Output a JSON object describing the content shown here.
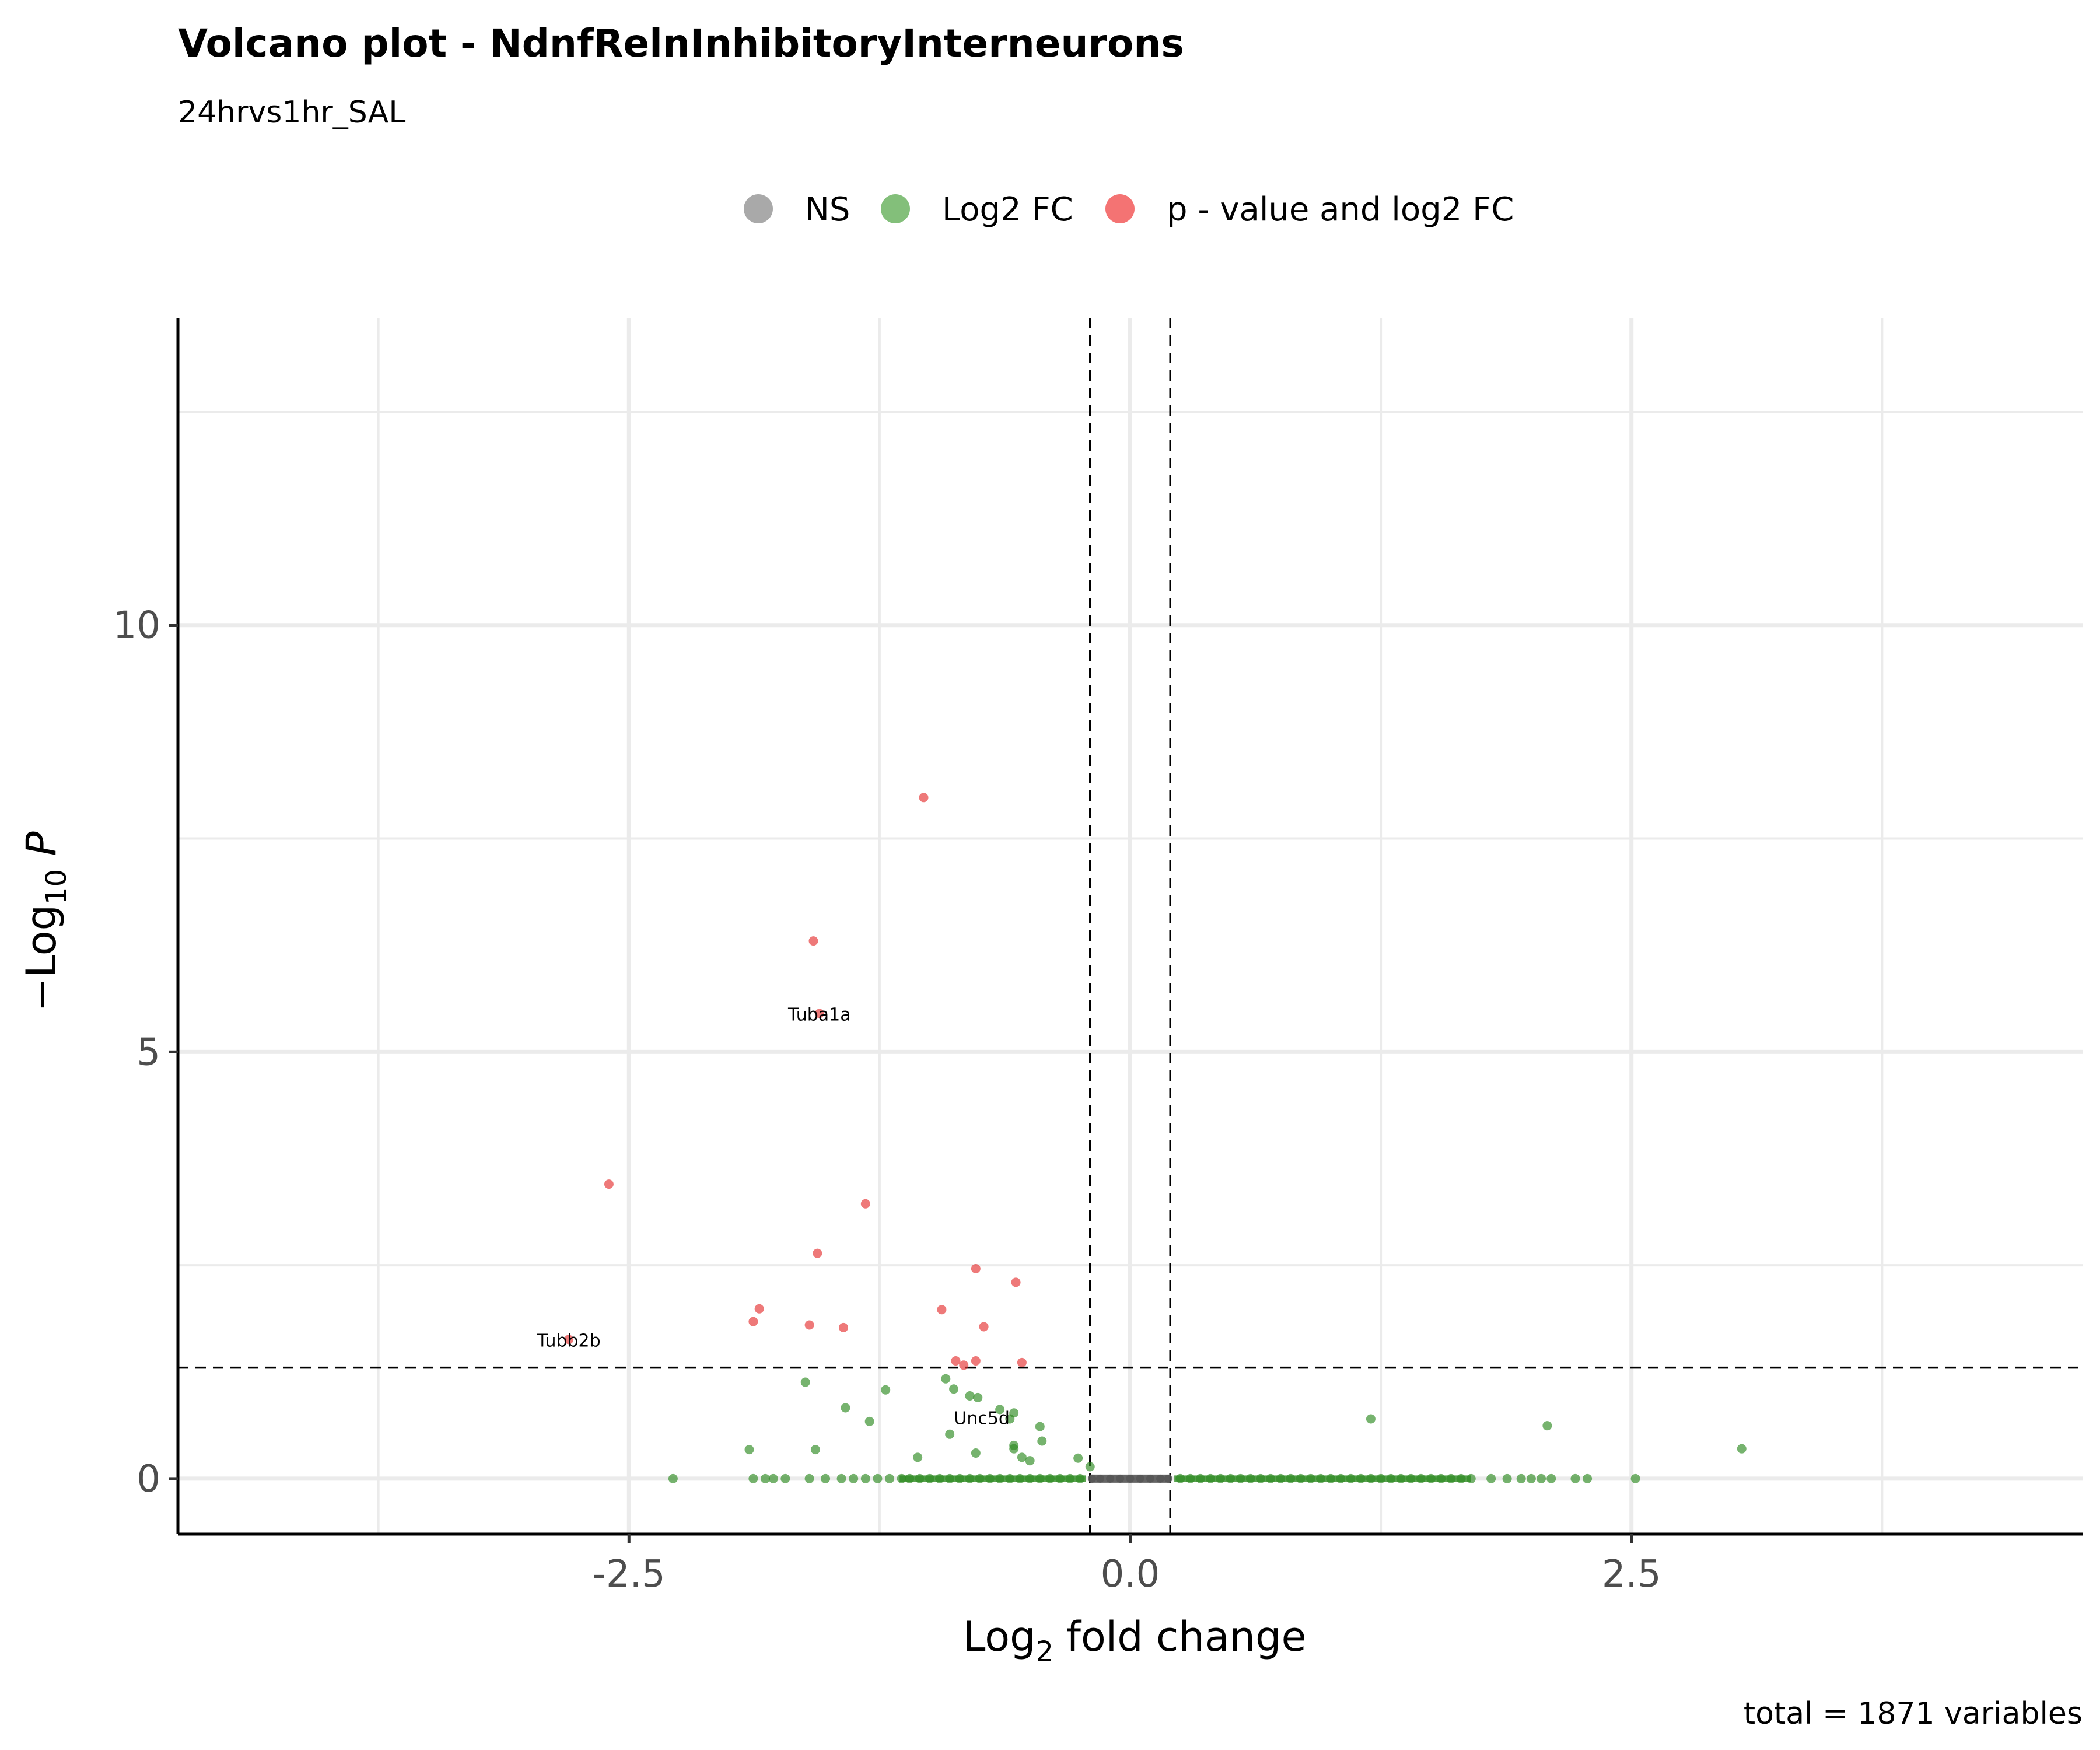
{
  "chart_data": {
    "type": "scatter",
    "title": "Volcano plot - NdnfRelnInhibitoryInterneurons",
    "subtitle": "24hrvs1hr_SAL",
    "caption": "total = 1871 variables",
    "xlabel": "Log2 fold change",
    "ylabel": "-Log10 P",
    "xlim": [
      -4.75,
      4.75
    ],
    "ylim": [
      -0.65,
      13.6
    ],
    "x_ticks": [
      -2.5,
      0.0,
      2.5
    ],
    "x_tick_labels": [
      "-2.5",
      "0.0",
      "2.5"
    ],
    "y_ticks": [
      0,
      5,
      10
    ],
    "y_tick_labels": [
      "0",
      "5",
      "10"
    ],
    "grid": true,
    "legend_position": "top",
    "thresholds": {
      "log2fc": [
        -0.2,
        0.2
      ],
      "neg_log10_p": 1.3
    },
    "legend": [
      {
        "key": "ns",
        "label": "NS",
        "color": "#8c8c8c"
      },
      {
        "key": "fc",
        "label": "Log2 FC",
        "color": "#5aaa4e"
      },
      {
        "key": "both",
        "label": "p - value and log2 FC",
        "color": "#f04444"
      }
    ],
    "series": [
      {
        "name": "p - value and log2 FC",
        "color": "#e63232",
        "points": [
          [
            -1.03,
            7.98
          ],
          [
            -1.58,
            6.3
          ],
          [
            -1.55,
            5.45
          ],
          [
            -2.6,
            3.45
          ],
          [
            -1.32,
            3.22
          ],
          [
            -1.56,
            2.64
          ],
          [
            -0.77,
            2.46
          ],
          [
            -0.57,
            2.3
          ],
          [
            -1.85,
            1.99
          ],
          [
            -0.94,
            1.98
          ],
          [
            -1.6,
            1.8
          ],
          [
            -1.88,
            1.84
          ],
          [
            -1.43,
            1.77
          ],
          [
            -0.73,
            1.78
          ],
          [
            -2.8,
            1.63
          ],
          [
            -0.87,
            1.38
          ],
          [
            -0.77,
            1.38
          ],
          [
            -0.54,
            1.36
          ],
          [
            -0.83,
            1.33
          ]
        ]
      },
      {
        "name": "Log2 FC",
        "color": "#2e8b22",
        "points": [
          [
            -1.62,
            1.13
          ],
          [
            -1.22,
            1.04
          ],
          [
            -0.92,
            1.17
          ],
          [
            -0.88,
            1.05
          ],
          [
            -0.8,
            0.97
          ],
          [
            -0.76,
            0.95
          ],
          [
            -1.42,
            0.83
          ],
          [
            -1.3,
            0.67
          ],
          [
            -0.9,
            0.52
          ],
          [
            -0.65,
            0.81
          ],
          [
            -0.6,
            0.7
          ],
          [
            -0.58,
            0.77
          ],
          [
            -0.45,
            0.61
          ],
          [
            -0.44,
            0.44
          ],
          [
            -0.58,
            0.39
          ],
          [
            -0.58,
            0.35
          ],
          [
            -0.77,
            0.3
          ],
          [
            -0.54,
            0.25
          ],
          [
            -0.5,
            0.21
          ],
          [
            -0.26,
            0.24
          ],
          [
            -0.2,
            0.14
          ],
          [
            -1.06,
            0.25
          ],
          [
            -1.9,
            0.34
          ],
          [
            -1.57,
            0.34
          ],
          [
            1.2,
            0.7
          ],
          [
            2.08,
            0.62
          ],
          [
            3.05,
            0.35
          ],
          [
            -2.28,
            0.0
          ],
          [
            -1.88,
            0.0
          ],
          [
            -1.82,
            0.0
          ],
          [
            -1.78,
            0.0
          ],
          [
            -1.72,
            0.0
          ],
          [
            -1.6,
            0.0
          ],
          [
            -1.52,
            0.0
          ],
          [
            -1.44,
            0.0
          ],
          [
            -1.38,
            0.0
          ],
          [
            -1.32,
            0.0
          ],
          [
            -1.26,
            0.0
          ],
          [
            -1.2,
            0.0
          ],
          [
            -1.14,
            0.0
          ],
          [
            -1.1,
            0.0
          ],
          [
            -1.05,
            0.0
          ],
          [
            -1.0,
            0.0
          ],
          [
            -0.95,
            0.0
          ],
          [
            -0.9,
            0.0
          ],
          [
            -0.85,
            0.0
          ],
          [
            -0.8,
            0.0
          ],
          [
            -0.75,
            0.0
          ],
          [
            -0.7,
            0.0
          ],
          [
            -0.65,
            0.0
          ],
          [
            -0.6,
            0.0
          ],
          [
            -0.55,
            0.0
          ],
          [
            -0.5,
            0.0
          ],
          [
            -0.45,
            0.0
          ],
          [
            -0.4,
            0.0
          ],
          [
            -0.35,
            0.0
          ],
          [
            -0.3,
            0.0
          ],
          [
            -0.25,
            0.0
          ],
          [
            0.25,
            0.0
          ],
          [
            0.3,
            0.0
          ],
          [
            0.35,
            0.0
          ],
          [
            0.4,
            0.0
          ],
          [
            0.45,
            0.0
          ],
          [
            0.5,
            0.0
          ],
          [
            0.55,
            0.0
          ],
          [
            0.6,
            0.0
          ],
          [
            0.65,
            0.0
          ],
          [
            0.7,
            0.0
          ],
          [
            0.75,
            0.0
          ],
          [
            0.8,
            0.0
          ],
          [
            0.85,
            0.0
          ],
          [
            0.9,
            0.0
          ],
          [
            0.95,
            0.0
          ],
          [
            1.0,
            0.0
          ],
          [
            1.05,
            0.0
          ],
          [
            1.1,
            0.0
          ],
          [
            1.15,
            0.0
          ],
          [
            1.2,
            0.0
          ],
          [
            1.25,
            0.0
          ],
          [
            1.3,
            0.0
          ],
          [
            1.35,
            0.0
          ],
          [
            1.4,
            0.0
          ],
          [
            1.45,
            0.0
          ],
          [
            1.5,
            0.0
          ],
          [
            1.55,
            0.0
          ],
          [
            1.6,
            0.0
          ],
          [
            1.65,
            0.0
          ],
          [
            1.7,
            0.0
          ],
          [
            1.8,
            0.0
          ],
          [
            1.88,
            0.0
          ],
          [
            1.95,
            0.0
          ],
          [
            2.0,
            0.0
          ],
          [
            2.05,
            0.0
          ],
          [
            2.1,
            0.0
          ],
          [
            2.22,
            0.0
          ],
          [
            2.28,
            0.0
          ],
          [
            2.52,
            0.0
          ]
        ]
      },
      {
        "name": "NS",
        "color": "#555555",
        "points": [
          [
            -0.19,
            0.0
          ],
          [
            -0.15,
            0.0
          ],
          [
            -0.1,
            0.0
          ],
          [
            -0.05,
            0.0
          ],
          [
            0.0,
            0.0
          ],
          [
            0.05,
            0.0
          ],
          [
            0.1,
            0.0
          ],
          [
            0.15,
            0.0
          ],
          [
            0.19,
            0.0
          ]
        ]
      }
    ],
    "annotations": [
      {
        "label": "Tuba1a",
        "x": -1.55,
        "y": 5.45
      },
      {
        "label": "Tubb2b",
        "x": -2.8,
        "y": 1.63
      },
      {
        "label": "Unc5d",
        "x": -0.74,
        "y": 0.72
      }
    ]
  }
}
